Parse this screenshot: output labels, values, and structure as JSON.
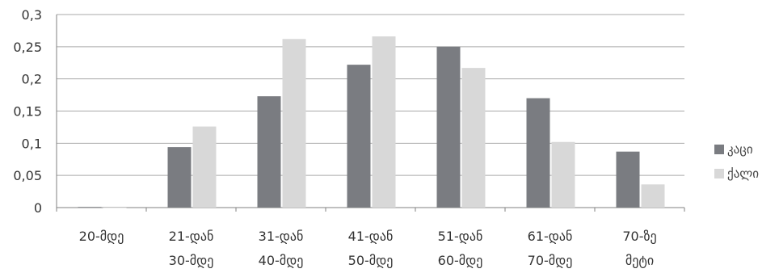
{
  "chart_data": {
    "type": "bar",
    "categories": [
      [
        "20-მდე"
      ],
      [
        "21-დან",
        "30-მდე"
      ],
      [
        "31-დან",
        "40-მდე"
      ],
      [
        "41-დან",
        "50-მდე"
      ],
      [
        "51-დან",
        "60-მდე"
      ],
      [
        "61-დან",
        "70-მდე"
      ],
      [
        "70-ზე",
        "მეტი"
      ]
    ],
    "series": [
      {
        "name": "კაცი",
        "color": "#7a7c81",
        "values": [
          0.001,
          0.094,
          0.173,
          0.222,
          0.25,
          0.17,
          0.087
        ]
      },
      {
        "name": "ქალი",
        "color": "#d8d8d8",
        "values": [
          0.0,
          0.126,
          0.262,
          0.266,
          0.217,
          0.102,
          0.036
        ]
      }
    ],
    "ylim": [
      0,
      0.3
    ],
    "yticks": [
      "0",
      "0,05",
      "0,1",
      "0,15",
      "0,2",
      "0,25",
      "0,3"
    ],
    "grid": true,
    "legend_position": "right",
    "title": "",
    "xlabel": "",
    "ylabel": ""
  }
}
